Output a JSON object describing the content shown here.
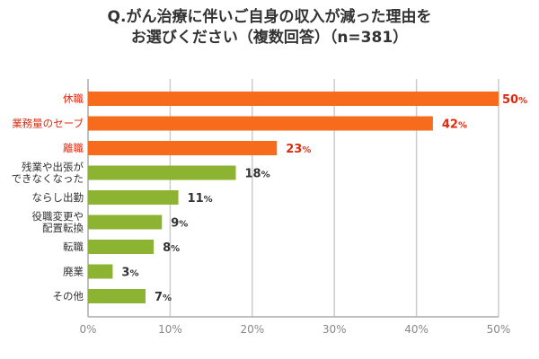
{
  "chart_data": {
    "type": "bar",
    "orientation": "horizontal",
    "title_lines": [
      "Q.がん治療に伴いご自身の収入が減った理由を",
      "お選びください（複数回答）（n=381）"
    ],
    "categories": [
      "休職",
      "業務量のセーブ",
      "離職",
      "残業や出張が\nできなくなった",
      "ならし出勤",
      "役職変更や\n配置転換",
      "転職",
      "廃業",
      "その他"
    ],
    "values": [
      50,
      42,
      23,
      18,
      11,
      9,
      8,
      3,
      7
    ],
    "highlighted": [
      true,
      true,
      true,
      false,
      false,
      false,
      false,
      false,
      false
    ],
    "value_suffix": "%",
    "xlim": [
      0,
      50
    ],
    "xticks": [
      "0%",
      "10%",
      "20%",
      "30%",
      "40%",
      "50%"
    ],
    "grid": true,
    "colors": {
      "highlight_bar": "#f76b1c",
      "highlight_text": "#e02a10",
      "normal_bar": "#8db332",
      "normal_text": "#333333",
      "grid": "#cccccc",
      "tick_text": "#888888"
    }
  }
}
